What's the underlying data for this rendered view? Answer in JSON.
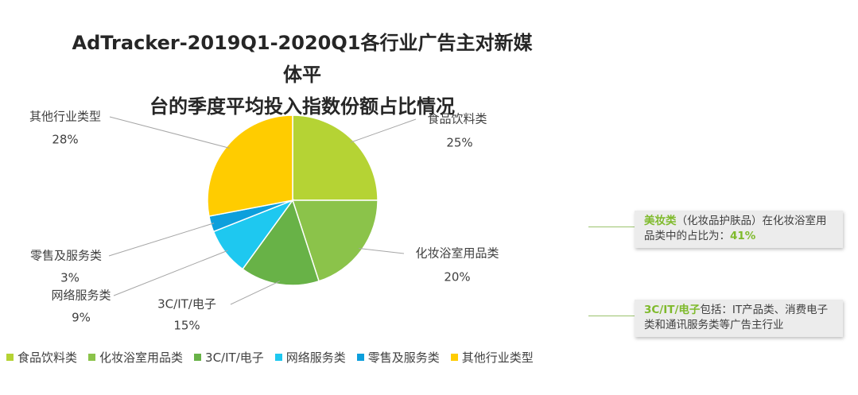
{
  "title_line1": "AdTracker-2019Q1-2020Q1各行业广告主对新媒体平",
  "title_line2": "台的季度平均投入指数份额占比情况",
  "chart_data": {
    "type": "pie",
    "title": "AdTracker-2019Q1-2020Q1各行业广告主对新媒体平台的季度平均投入指数份额占比情况",
    "legend_position": "bottom",
    "slices": [
      {
        "label": "食品饮料类",
        "value": 25,
        "value_label": "25%",
        "color": "#b5d334"
      },
      {
        "label": "化妆浴室用品类",
        "value": 20,
        "value_label": "20%",
        "color": "#8bc34a"
      },
      {
        "label": "3C/IT/电子",
        "value": 15,
        "value_label": "15%",
        "color": "#68b247"
      },
      {
        "label": "网络服务类",
        "value": 9,
        "value_label": "9%",
        "color": "#1ec8f0"
      },
      {
        "label": "零售及服务类",
        "value": 3,
        "value_label": "3%",
        "color": "#0d9fdc"
      },
      {
        "label": "其他行业类型",
        "value": 28,
        "value_label": "28%",
        "color": "#ffcc00"
      }
    ]
  },
  "notes": [
    {
      "highlight": "美妆类",
      "text": "（化妆品护肤品）在化妆浴室用品类中的占比为：",
      "value": "41%"
    },
    {
      "highlight": "3C/IT/电子",
      "text": "包括：IT产品类、消费电子类和通讯服务类等广告主行业"
    }
  ]
}
